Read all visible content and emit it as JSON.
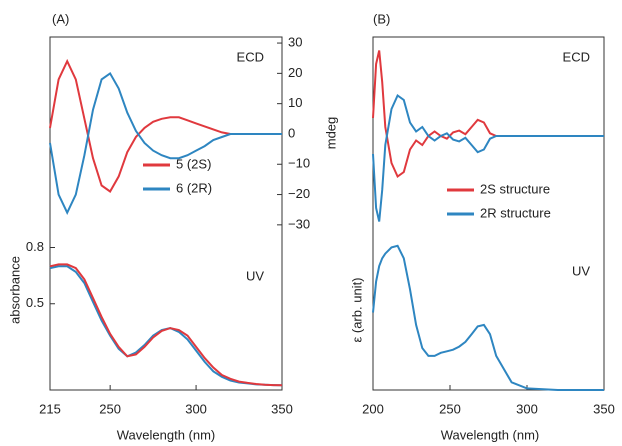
{
  "chart_data": [
    {
      "type": "line",
      "title": "(A)",
      "annotation": "ECD",
      "y_label": "mdeg",
      "y_axis_side": "right",
      "x": [
        215,
        220,
        225,
        230,
        235,
        240,
        245,
        250,
        255,
        260,
        265,
        270,
        275,
        280,
        285,
        290,
        295,
        300,
        305,
        310,
        315,
        320,
        325,
        330,
        335,
        340,
        345,
        350
      ],
      "xlim": [
        215,
        350
      ],
      "ylim": [
        -35,
        32
      ],
      "yticks": [
        {
          "value": -30,
          "label": "−30"
        },
        {
          "value": -20,
          "label": "−20"
        },
        {
          "value": -10,
          "label": "−10"
        },
        0,
        10,
        20,
        30
      ],
      "series": [
        {
          "name": "5 (2S)",
          "color": "#e0393e",
          "values": [
            2,
            18,
            24,
            18,
            5,
            -8,
            -17,
            -19,
            -14,
            -6,
            -1,
            2,
            4,
            5,
            5.5,
            5.5,
            4.5,
            3.5,
            2.5,
            1.5,
            0.5,
            0,
            0,
            0,
            0,
            0,
            0,
            0
          ]
        },
        {
          "name": "6 (2R)",
          "color": "#2e86c1",
          "values": [
            -3,
            -20,
            -26,
            -20,
            -7,
            8,
            18,
            20,
            15,
            7,
            1,
            -3,
            -5.5,
            -7,
            -8,
            -8,
            -7,
            -5.5,
            -4,
            -2,
            -1,
            0,
            0,
            0,
            0,
            0,
            0,
            0
          ]
        }
      ]
    },
    {
      "type": "line",
      "annotation": "UV",
      "y_label": "absorbance",
      "x_label": "Wavelength (nm)",
      "y_axis_side": "left",
      "x": [
        215,
        220,
        225,
        230,
        235,
        240,
        245,
        250,
        255,
        260,
        265,
        270,
        275,
        280,
        285,
        290,
        295,
        300,
        305,
        310,
        315,
        320,
        325,
        330,
        335,
        340,
        345,
        350
      ],
      "xlim": [
        215,
        350
      ],
      "ylim": [
        0.04,
        0.84
      ],
      "xticks": [
        215,
        250,
        300,
        350
      ],
      "yticks": [
        0.5,
        0.8
      ],
      "series": [
        {
          "color": "#2e86c1",
          "values": [
            0.69,
            0.7,
            0.7,
            0.67,
            0.61,
            0.51,
            0.41,
            0.33,
            0.26,
            0.22,
            0.24,
            0.28,
            0.33,
            0.36,
            0.37,
            0.35,
            0.31,
            0.25,
            0.19,
            0.14,
            0.11,
            0.09,
            0.08,
            0.075,
            0.07,
            0.068,
            0.066,
            0.065
          ]
        },
        {
          "color": "#e0393e",
          "values": [
            0.7,
            0.71,
            0.71,
            0.69,
            0.63,
            0.53,
            0.43,
            0.34,
            0.27,
            0.22,
            0.23,
            0.27,
            0.32,
            0.355,
            0.37,
            0.36,
            0.33,
            0.27,
            0.21,
            0.16,
            0.12,
            0.1,
            0.085,
            0.078,
            0.072,
            0.068,
            0.066,
            0.065
          ]
        }
      ]
    },
    {
      "type": "line",
      "title": "(B)",
      "annotation": "ECD",
      "y_axis_side": "right",
      "x": [
        200,
        202,
        204,
        206,
        208,
        212,
        216,
        220,
        224,
        228,
        232,
        236,
        240,
        244,
        248,
        252,
        256,
        260,
        264,
        268,
        272,
        276,
        280,
        290,
        300,
        320,
        350
      ],
      "xlim": [
        200,
        350
      ],
      "ylim": [
        -1.1,
        1.1
      ],
      "series": [
        {
          "name": "2S structure",
          "color": "#e0393e",
          "values": [
            0.2,
            0.8,
            0.95,
            0.6,
            0.1,
            -0.3,
            -0.45,
            -0.4,
            -0.15,
            -0.05,
            -0.1,
            0,
            0.05,
            0,
            -0.03,
            0.04,
            0.06,
            0.02,
            0.1,
            0.18,
            0.15,
            0.03,
            0,
            0,
            0,
            0,
            0
          ]
        },
        {
          "name": "2R structure",
          "color": "#2e86c1",
          "values": [
            -0.2,
            -0.8,
            -0.95,
            -0.6,
            -0.1,
            0.3,
            0.45,
            0.4,
            0.15,
            0.05,
            0.1,
            0,
            -0.05,
            0,
            0.03,
            -0.04,
            -0.06,
            -0.02,
            -0.1,
            -0.18,
            -0.15,
            -0.03,
            0,
            0,
            0,
            0,
            0
          ]
        }
      ]
    },
    {
      "type": "line",
      "annotation": "UV",
      "y_label": "ε (arb. unit)",
      "x_label": "Wavelength (nm)",
      "y_axis_side": "left",
      "x": [
        200,
        202,
        204,
        206,
        208,
        212,
        216,
        220,
        224,
        228,
        232,
        236,
        240,
        244,
        248,
        252,
        256,
        260,
        264,
        268,
        272,
        276,
        280,
        290,
        300,
        320,
        350
      ],
      "xlim": [
        200,
        350
      ],
      "ylim": [
        0,
        1
      ],
      "xticks": [
        200,
        250,
        300,
        350
      ],
      "series": [
        {
          "color": "#2e86c1",
          "values": [
            0.5,
            0.7,
            0.8,
            0.85,
            0.88,
            0.92,
            0.93,
            0.85,
            0.65,
            0.42,
            0.27,
            0.22,
            0.22,
            0.24,
            0.25,
            0.26,
            0.28,
            0.31,
            0.36,
            0.41,
            0.42,
            0.36,
            0.22,
            0.05,
            0.01,
            0,
            0
          ]
        }
      ]
    }
  ]
}
